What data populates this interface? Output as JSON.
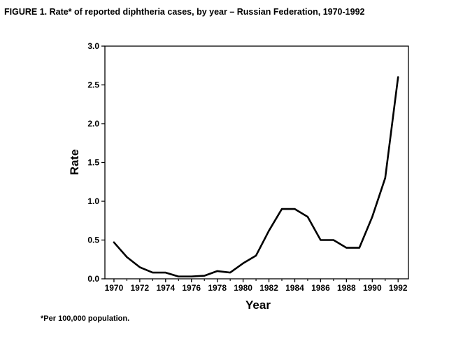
{
  "figure": {
    "title": "FIGURE 1.  Rate* of reported diphtheria cases, by year – Russian Federation, 1970-1992",
    "footnote": "*Per 100,000 population."
  },
  "chart_data": {
    "type": "line",
    "title": "FIGURE 1.  Rate* of reported diphtheria cases, by year – Russian Federation, 1970-1992",
    "xlabel": "Year",
    "ylabel": "Rate",
    "xlim": [
      1969.3,
      1992.8
    ],
    "ylim": [
      0,
      3.0
    ],
    "x_ticks": [
      1970,
      1972,
      1974,
      1976,
      1978,
      1980,
      1982,
      1984,
      1986,
      1988,
      1990,
      1992
    ],
    "x_minor_ticks": [
      1971,
      1973,
      1975,
      1977,
      1979,
      1981,
      1983,
      1985,
      1987,
      1989,
      1991
    ],
    "y_ticks": [
      0.0,
      0.5,
      1.0,
      1.5,
      2.0,
      2.5,
      3.0
    ],
    "y_tick_labels": [
      "0.0",
      "0.5",
      "1.0",
      "1.5",
      "2.0",
      "2.5",
      "3.0"
    ],
    "grid": false,
    "series": [
      {
        "name": "Rate",
        "color": "#000000",
        "x": [
          1970,
          1971,
          1972,
          1973,
          1974,
          1975,
          1976,
          1977,
          1978,
          1979,
          1980,
          1981,
          1982,
          1983,
          1984,
          1985,
          1986,
          1987,
          1988,
          1989,
          1990,
          1991,
          1992
        ],
        "values": [
          0.47,
          0.28,
          0.15,
          0.08,
          0.08,
          0.03,
          0.03,
          0.04,
          0.1,
          0.08,
          0.2,
          0.3,
          0.62,
          0.9,
          0.9,
          0.8,
          0.5,
          0.5,
          0.4,
          0.4,
          0.8,
          1.3,
          2.6
        ]
      }
    ]
  }
}
